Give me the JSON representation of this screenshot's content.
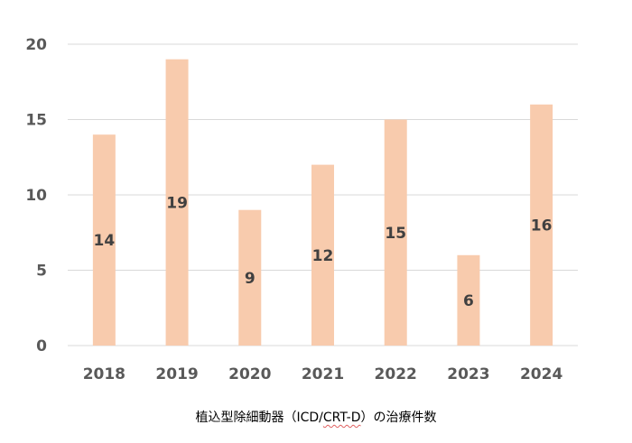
{
  "chart_data": {
    "type": "bar",
    "categories": [
      "2018",
      "2019",
      "2020",
      "2021",
      "2022",
      "2023",
      "2024"
    ],
    "values": [
      14,
      19,
      9,
      12,
      15,
      6,
      16
    ],
    "ylim": [
      0,
      20
    ],
    "yticks": [
      "0",
      "5",
      "10",
      "15",
      "20"
    ],
    "grid": true,
    "bar_color": "#f8cbad",
    "caption_prefix": "植込型除細動器（ICD/",
    "caption_mark": "CRT-D",
    "caption_suffix": "）の治療件数"
  }
}
